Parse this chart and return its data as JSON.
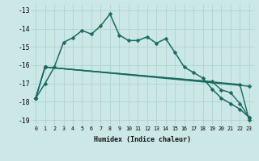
{
  "xlabel": "Humidex (Indice chaleur)",
  "background_color": "#cce8e6",
  "grid_color": "#a8cfcc",
  "line_color": "#196b60",
  "xlim": [
    -0.5,
    23.5
  ],
  "ylim": [
    -19.3,
    -12.7
  ],
  "yticks": [
    -19,
    -18,
    -17,
    -16,
    -15,
    -14,
    -13
  ],
  "xticks": [
    0,
    1,
    2,
    3,
    4,
    5,
    6,
    7,
    8,
    9,
    10,
    11,
    12,
    13,
    14,
    15,
    16,
    17,
    18,
    19,
    20,
    21,
    22,
    23
  ],
  "series": [
    {
      "x": [
        0,
        1,
        2,
        3,
        4,
        5,
        6,
        7,
        8,
        9,
        10,
        11,
        12,
        13,
        14,
        15,
        16,
        17,
        18,
        19,
        20,
        21,
        22,
        23
      ],
      "y": [
        -17.8,
        -17.0,
        -16.1,
        -14.75,
        -14.5,
        -14.1,
        -14.3,
        -13.85,
        -13.2,
        -14.35,
        -14.65,
        -14.65,
        -14.45,
        -14.8,
        -14.55,
        -15.3,
        -16.1,
        -16.4,
        -16.7,
        -17.3,
        -17.8,
        -18.1,
        -18.4,
        -18.85
      ],
      "marker": "D",
      "markersize": 2.5,
      "linewidth": 1.1,
      "has_markers": true
    },
    {
      "x": [
        0,
        1,
        23
      ],
      "y": [
        -17.8,
        -16.1,
        -17.15
      ],
      "marker": "D",
      "markersize": 2.5,
      "linewidth": 1.0,
      "has_markers": true
    },
    {
      "x": [
        0,
        1,
        19,
        20,
        21,
        22,
        23
      ],
      "y": [
        -17.8,
        -16.1,
        -16.9,
        -17.35,
        -17.5,
        -18.1,
        -18.85
      ],
      "marker": "D",
      "markersize": 2.5,
      "linewidth": 1.0,
      "has_markers": true
    },
    {
      "x": [
        0,
        1,
        22,
        23
      ],
      "y": [
        -17.8,
        -16.1,
        -17.05,
        -19.0
      ],
      "marker": "D",
      "markersize": 2.5,
      "linewidth": 1.0,
      "has_markers": true
    }
  ]
}
